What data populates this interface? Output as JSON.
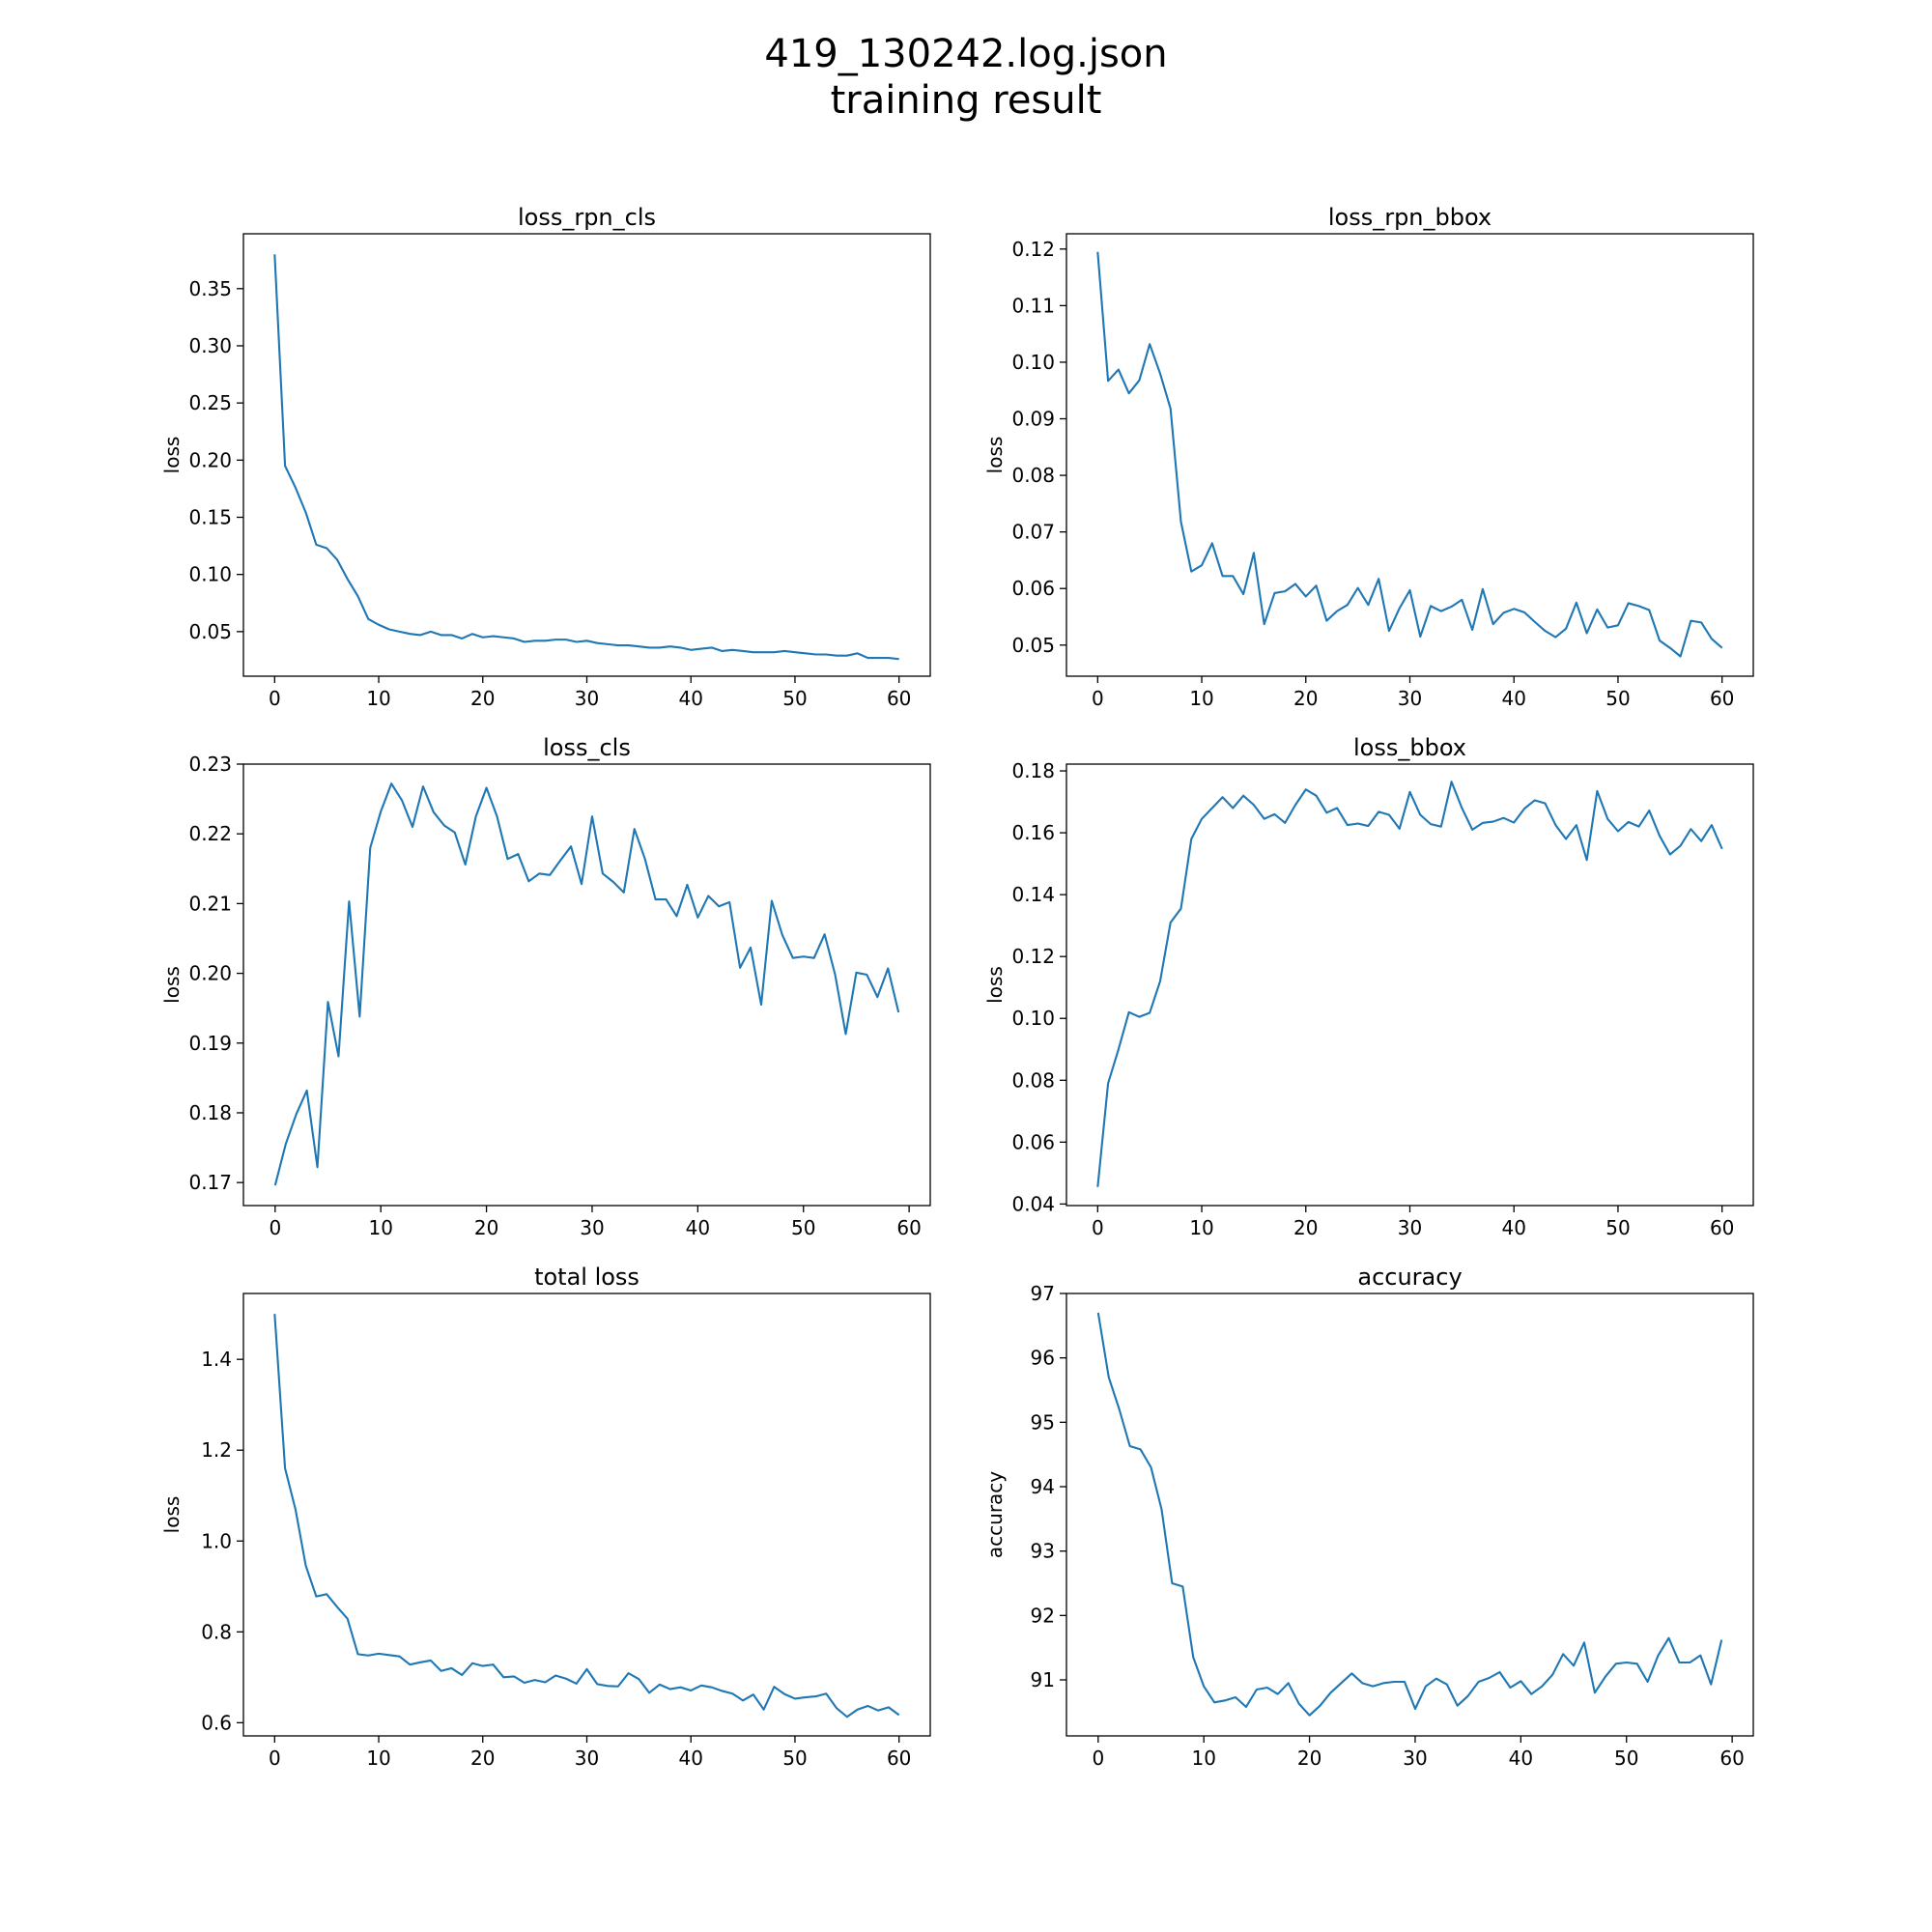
{
  "figure": {
    "title_line1": "419_130242.log.json",
    "title_line2": "training result",
    "line_color": "#1f77b4"
  },
  "chart_data": [
    {
      "type": "line",
      "title": "loss_rpn_cls",
      "xlabel": "",
      "ylabel": "loss",
      "xlim": [
        -3,
        63
      ],
      "ylim": [
        0.011,
        0.398
      ],
      "xticks": [
        0,
        10,
        20,
        30,
        40,
        50,
        60
      ],
      "yticks": [
        0.05,
        0.1,
        0.15,
        0.2,
        0.25,
        0.3,
        0.35
      ],
      "ytick_labels": [
        "0.05",
        "0.10",
        "0.15",
        "0.20",
        "0.25",
        "0.30",
        "0.35"
      ],
      "grid": false,
      "series": [
        {
          "values": [
            0.38,
            0.195,
            0.176,
            0.154,
            0.126,
            0.123,
            0.113,
            0.096,
            0.081,
            0.061,
            0.056,
            0.052,
            0.05,
            0.048,
            0.047,
            0.05,
            0.047,
            0.047,
            0.044,
            0.048,
            0.045,
            0.046,
            0.045,
            0.044,
            0.041,
            0.042,
            0.042,
            0.043,
            0.043,
            0.041,
            0.042,
            0.04,
            0.039,
            0.038,
            0.038,
            0.037,
            0.036,
            0.036,
            0.037,
            0.036,
            0.034,
            0.035,
            0.036,
            0.033,
            0.034,
            0.033,
            0.032,
            0.032,
            0.032,
            0.033,
            0.032,
            0.031,
            0.03,
            0.03,
            0.029,
            0.029,
            0.031,
            0.027,
            0.027,
            0.027,
            0.026
          ]
        }
      ]
    },
    {
      "type": "line",
      "title": "loss_rpn_bbox",
      "xlabel": "",
      "ylabel": "loss",
      "xlim": [
        -3,
        63
      ],
      "ylim": [
        0.0445,
        0.1227
      ],
      "xticks": [
        0,
        10,
        20,
        30,
        40,
        50,
        60
      ],
      "yticks": [
        0.05,
        0.06,
        0.07,
        0.08,
        0.09,
        0.1,
        0.11,
        0.12
      ],
      "ytick_labels": [
        "0.05",
        "0.06",
        "0.07",
        "0.08",
        "0.09",
        "0.10",
        "0.11",
        "0.12"
      ],
      "grid": false,
      "series": [
        {
          "values": [
            0.1195,
            0.0967,
            0.0987,
            0.0945,
            0.0968,
            0.1032,
            0.098,
            0.0918,
            0.0718,
            0.063,
            0.0641,
            0.068,
            0.0622,
            0.0622,
            0.059,
            0.0663,
            0.0537,
            0.0592,
            0.0595,
            0.0608,
            0.0586,
            0.0605,
            0.0543,
            0.056,
            0.0571,
            0.0601,
            0.0571,
            0.0617,
            0.0525,
            0.0565,
            0.0597,
            0.0515,
            0.0569,
            0.056,
            0.0568,
            0.058,
            0.0527,
            0.0599,
            0.0537,
            0.0557,
            0.0564,
            0.0558,
            0.0541,
            0.0525,
            0.0514,
            0.0529,
            0.0575,
            0.0521,
            0.0563,
            0.0531,
            0.0535,
            0.0574,
            0.0569,
            0.0562,
            0.0508,
            0.0495,
            0.048,
            0.0543,
            0.054,
            0.0511,
            0.0495
          ]
        }
      ]
    },
    {
      "type": "line",
      "title": "loss_cls",
      "xlabel": "",
      "ylabel": "loss",
      "xlim": [
        -3,
        62
      ],
      "ylim": [
        0.1667,
        0.23
      ],
      "xticks": [
        0,
        10,
        20,
        30,
        40,
        50,
        60
      ],
      "yticks": [
        0.17,
        0.18,
        0.19,
        0.2,
        0.21,
        0.22,
        0.23
      ],
      "ytick_labels": [
        "0.17",
        "0.18",
        "0.19",
        "0.20",
        "0.21",
        "0.22",
        "0.23"
      ],
      "grid": false,
      "series": [
        {
          "values": [
            0.1696,
            0.1755,
            0.1798,
            0.1832,
            0.1722,
            0.1959,
            0.1881,
            0.2103,
            0.1938,
            0.218,
            0.2232,
            0.2272,
            0.2248,
            0.221,
            0.2268,
            0.2231,
            0.2212,
            0.2202,
            0.2156,
            0.2225,
            0.2266,
            0.2225,
            0.2164,
            0.2171,
            0.2132,
            0.2143,
            0.2141,
            0.2162,
            0.2182,
            0.2128,
            0.2225,
            0.2143,
            0.2131,
            0.2116,
            0.2207,
            0.2164,
            0.2106,
            0.2106,
            0.2082,
            0.2127,
            0.208,
            0.2111,
            0.2096,
            0.2102,
            0.2008,
            0.2037,
            0.1955,
            0.2104,
            0.2055,
            0.2022,
            0.2024,
            0.2022,
            0.2056,
            0.1998,
            0.1913,
            0.2001,
            0.1998,
            0.1966,
            0.2007,
            0.1944
          ]
        }
      ]
    },
    {
      "type": "line",
      "title": "loss_bbox",
      "xlabel": "",
      "ylabel": "loss",
      "xlim": [
        -3,
        63
      ],
      "ylim": [
        0.0395,
        0.1822
      ],
      "xticks": [
        0,
        10,
        20,
        30,
        40,
        50,
        60
      ],
      "yticks": [
        0.04,
        0.06,
        0.08,
        0.1,
        0.12,
        0.14,
        0.16,
        0.18
      ],
      "ytick_labels": [
        "0.04",
        "0.06",
        "0.08",
        "0.10",
        "0.12",
        "0.14",
        "0.16",
        "0.18"
      ],
      "grid": false,
      "series": [
        {
          "values": [
            0.0455,
            0.079,
            0.09,
            0.102,
            0.1005,
            0.1018,
            0.112,
            0.131,
            0.1355,
            0.158,
            0.1645,
            0.168,
            0.1715,
            0.168,
            0.172,
            0.169,
            0.1645,
            0.166,
            0.1632,
            0.169,
            0.174,
            0.172,
            0.1665,
            0.168,
            0.1625,
            0.163,
            0.1622,
            0.1668,
            0.1658,
            0.1613,
            0.1732,
            0.1658,
            0.1628,
            0.162,
            0.1765,
            0.168,
            0.161,
            0.1632,
            0.1636,
            0.1648,
            0.1633,
            0.1678,
            0.1705,
            0.1695,
            0.1625,
            0.158,
            0.1625,
            0.1512,
            0.1735,
            0.1645,
            0.1605,
            0.1635,
            0.162,
            0.1672,
            0.159,
            0.153,
            0.1558,
            0.1612,
            0.1573,
            0.1625,
            0.1548
          ]
        }
      ]
    },
    {
      "type": "line",
      "title": "total loss",
      "xlabel": "",
      "ylabel": "loss",
      "xlim": [
        -3,
        63
      ],
      "ylim": [
        0.571,
        1.545
      ],
      "xticks": [
        0,
        10,
        20,
        30,
        40,
        50,
        60
      ],
      "yticks": [
        0.6,
        0.8,
        1.0,
        1.2,
        1.4
      ],
      "ytick_labels": [
        "0.6",
        "0.8",
        "1.0",
        "1.2",
        "1.4"
      ],
      "grid": false,
      "series": [
        {
          "values": [
            1.5,
            1.16,
            1.07,
            0.945,
            0.878,
            0.883,
            0.855,
            0.829,
            0.751,
            0.748,
            0.752,
            0.749,
            0.746,
            0.728,
            0.733,
            0.737,
            0.714,
            0.72,
            0.705,
            0.731,
            0.725,
            0.728,
            0.7,
            0.702,
            0.688,
            0.694,
            0.689,
            0.704,
            0.697,
            0.686,
            0.718,
            0.685,
            0.681,
            0.68,
            0.709,
            0.696,
            0.666,
            0.684,
            0.674,
            0.678,
            0.671,
            0.682,
            0.678,
            0.67,
            0.664,
            0.649,
            0.662,
            0.629,
            0.679,
            0.663,
            0.653,
            0.656,
            0.658,
            0.664,
            0.632,
            0.613,
            0.629,
            0.637,
            0.627,
            0.634,
            0.617
          ]
        }
      ]
    },
    {
      "type": "line",
      "title": "accuracy",
      "xlabel": "",
      "ylabel": "accuracy",
      "xlim": [
        -3,
        62
      ],
      "ylim": [
        90.13,
        97.0
      ],
      "xticks": [
        0,
        10,
        20,
        30,
        40,
        50,
        60
      ],
      "yticks": [
        91,
        92,
        93,
        94,
        95,
        96,
        97
      ],
      "ytick_labels": [
        "91",
        "92",
        "93",
        "94",
        "95",
        "96",
        "97"
      ],
      "grid": false,
      "series": [
        {
          "values": [
            96.7,
            95.7,
            95.2,
            94.63,
            94.58,
            94.3,
            93.65,
            92.5,
            92.45,
            91.35,
            90.9,
            90.65,
            90.68,
            90.73,
            90.58,
            90.85,
            90.88,
            90.78,
            90.95,
            90.63,
            90.45,
            90.6,
            90.8,
            90.95,
            91.1,
            90.95,
            90.9,
            90.95,
            90.97,
            90.97,
            90.55,
            90.9,
            91.02,
            90.93,
            90.6,
            90.75,
            90.97,
            91.03,
            91.12,
            90.88,
            90.98,
            90.78,
            90.9,
            91.08,
            91.4,
            91.22,
            91.58,
            90.8,
            91.05,
            91.25,
            91.27,
            91.25,
            90.97,
            91.38,
            91.65,
            91.27,
            91.27,
            91.38,
            90.93,
            91.62
          ]
        }
      ]
    }
  ]
}
